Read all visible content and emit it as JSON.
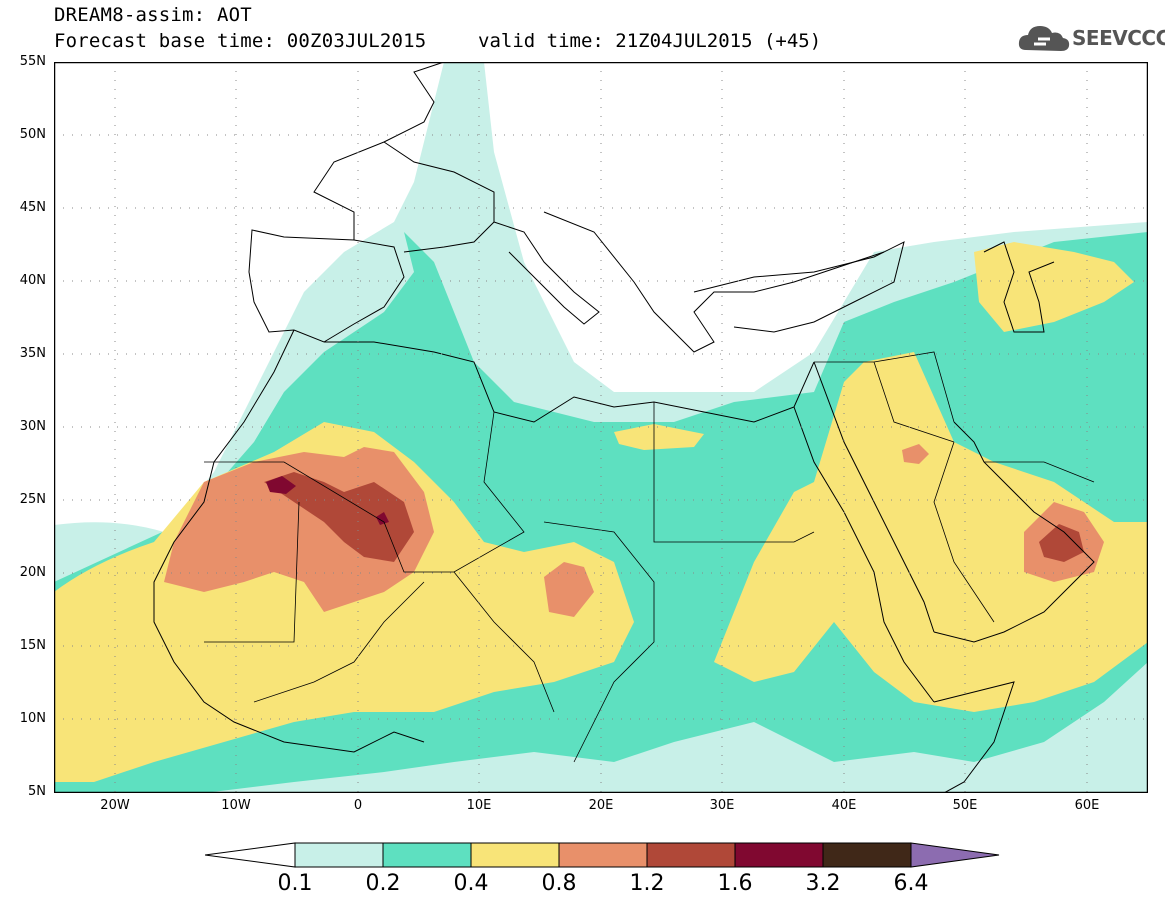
{
  "header": {
    "title": "DREAM8-assim: AOT",
    "base_time": "Forecast base time: 00Z03JUL2015",
    "valid_time": "valid time: 21Z04JUL2015 (+45)"
  },
  "logo": {
    "text": "SEEVCCC",
    "icon": "cloud-icon"
  },
  "axes": {
    "lat_labels": [
      "55N",
      "50N",
      "45N",
      "40N",
      "35N",
      "30N",
      "25N",
      "20N",
      "15N",
      "10N",
      "5N"
    ],
    "lon_labels": [
      "20W",
      "10W",
      "0",
      "10E",
      "20E",
      "30E",
      "40E",
      "50E",
      "60E"
    ],
    "lat_range": [
      5,
      55
    ],
    "lon_range": [
      -25,
      65
    ],
    "grid": "dotted"
  },
  "colorbar": {
    "labels": [
      "0.1",
      "0.2",
      "0.4",
      "0.8",
      "1.2",
      "1.6",
      "3.2",
      "6.4"
    ],
    "colors": [
      "#ffffff",
      "#c8f0e8",
      "#5ee0c0",
      "#f8e478",
      "#e8906a",
      "#b04838",
      "#800830",
      "#402818",
      "#8c6cb0"
    ]
  }
}
